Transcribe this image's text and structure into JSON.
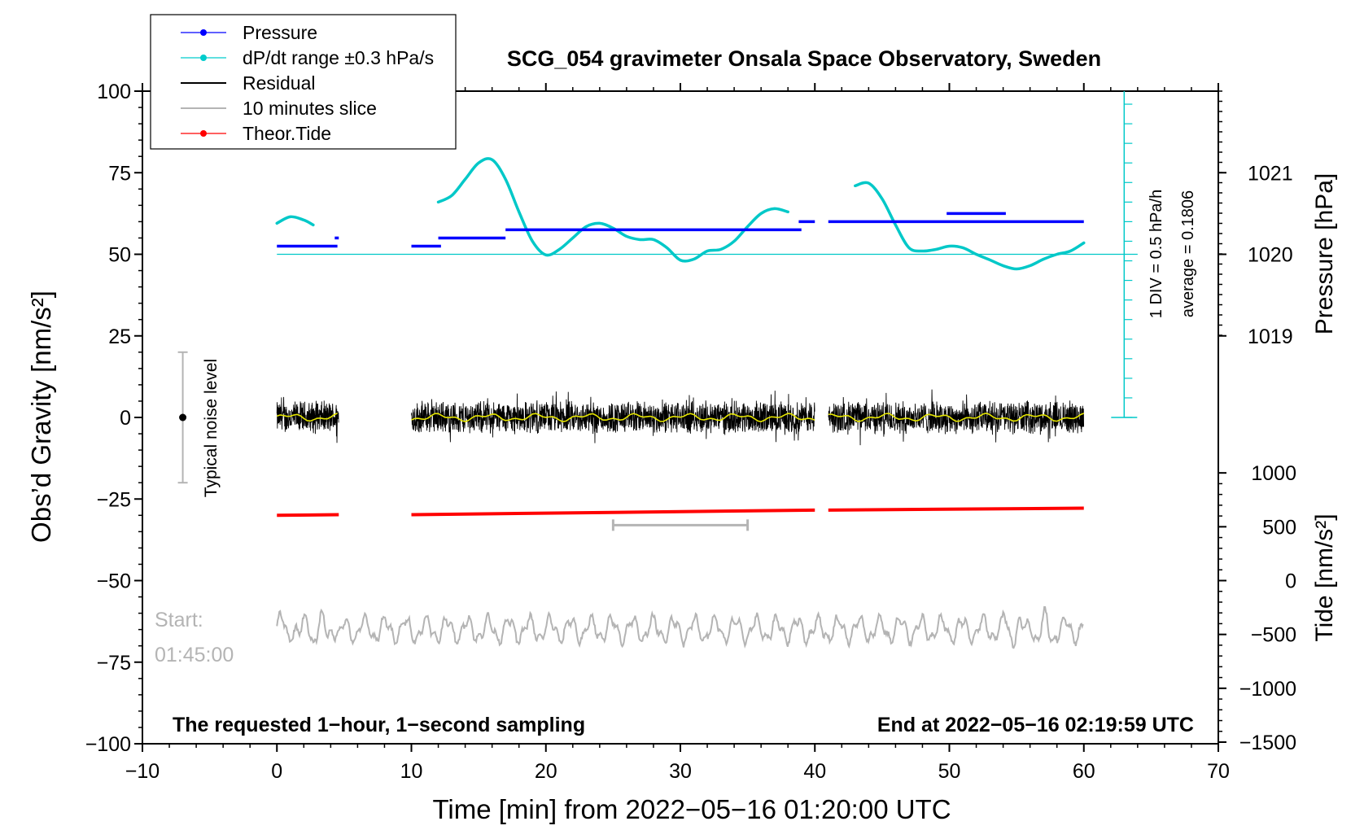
{
  "chart_data": {
    "type": "line",
    "title": "SCG_054 gravimeter Onsala Space Observatory, Sweden",
    "xlabel": "Time [min] from 2022−05−16 01:20:00 UTC",
    "ylabel_left": "Obs’d Gravity [nm/s²]",
    "ylabel_right_pressure": "Pressure [hPa]",
    "ylabel_right_tide": "Tide [nm/s²]",
    "xlim": [
      -10,
      70
    ],
    "ylim": [
      -100,
      100
    ],
    "x_ticks": [
      -10,
      0,
      10,
      20,
      30,
      40,
      50,
      60,
      70
    ],
    "x_tick_labels": [
      "−10",
      "0",
      "10",
      "20",
      "30",
      "40",
      "50",
      "60",
      "70"
    ],
    "y_ticks": [
      -100,
      -75,
      -50,
      -25,
      0,
      25,
      50,
      75,
      100
    ],
    "y_tick_labels": [
      "−100",
      "−75",
      "−50",
      "−25",
      "0",
      "25",
      "50",
      "75",
      "100"
    ],
    "pressure_ticks": [
      1019,
      1020,
      1021
    ],
    "pressure_tick_labels": [
      "1019",
      "1020",
      "1021"
    ],
    "tide_ticks": [
      1000,
      500,
      0,
      -500,
      -1000,
      -1500
    ],
    "tide_tick_labels": [
      "1000",
      "500",
      "0",
      "−500",
      "−1000",
      "−1500"
    ],
    "legend": [
      {
        "label": "Pressure",
        "color": "#0000ff",
        "marker": true
      },
      {
        "label": "dP/dt range ±0.3 hPa/s",
        "color": "#00cccc",
        "marker": true
      },
      {
        "label": "Residual",
        "color": "#000000",
        "marker": false
      },
      {
        "label": "10 minutes slice",
        "color": "#b4b4b4",
        "marker": false
      },
      {
        "label": "Theor.Tide",
        "color": "#ff0000",
        "marker": true
      }
    ],
    "legend_position": "top-left",
    "colors": {
      "pressure": "#0000ff",
      "dpdt": "#00c8c8",
      "residual": "#000000",
      "smooth": "#e6e600",
      "slice": "#b4b4b4",
      "tide": "#ff0000"
    },
    "data_segments": [
      [
        0,
        4.6
      ],
      [
        10,
        40
      ],
      [
        41,
        60
      ]
    ],
    "pressure_series": {
      "name": "Pressure",
      "segments": [
        {
          "x0": 0,
          "x1": 4.5,
          "y": 52.5
        },
        {
          "x0": 4.3,
          "x1": 4.6,
          "y": 55
        },
        {
          "x0": 10,
          "x1": 12.2,
          "y": 52.5
        },
        {
          "x0": 12,
          "x1": 17,
          "y": 55
        },
        {
          "x0": 17,
          "x1": 39,
          "y": 57.5
        },
        {
          "x0": 38.8,
          "x1": 40,
          "y": 60
        },
        {
          "x0": 41,
          "x1": 60,
          "y": 60
        },
        {
          "x0": 49.8,
          "x1": 54.2,
          "y": 62.5
        }
      ]
    },
    "dpdt_series": {
      "name": "dP/dt range ±0.3 hPa/s",
      "baseline": 50,
      "x": [
        0,
        1,
        2,
        2.7,
        12,
        13,
        14,
        15,
        16,
        17,
        18,
        19,
        20,
        21,
        22,
        23,
        24,
        25,
        26,
        27,
        28,
        29,
        30,
        31,
        32,
        33,
        34,
        35,
        36,
        37,
        38,
        43,
        44,
        45,
        46,
        47,
        48,
        49,
        50,
        51,
        52,
        53,
        54,
        55,
        56,
        57,
        58,
        59,
        60
      ],
      "y": [
        59.5,
        61.5,
        60.5,
        59.0,
        66,
        68,
        73,
        78,
        79,
        73,
        63,
        54,
        49.8,
        51.5,
        55,
        58.5,
        59.5,
        58,
        55.5,
        54.5,
        54.5,
        52,
        48.2,
        48.5,
        51,
        51.5,
        54,
        58.5,
        62.5,
        64,
        63,
        71,
        71.8,
        67,
        59,
        52,
        51,
        51.5,
        52.5,
        52,
        50,
        48.3,
        46.5,
        45.5,
        46.5,
        48.5,
        50,
        51,
        53.5
      ]
    },
    "residual_series": {
      "name": "Residual",
      "center": 0,
      "amplitude": 5,
      "sampling": "1-second"
    },
    "slice_series": {
      "name": "10 minutes slice",
      "center": -65,
      "amplitude": 5
    },
    "tide_series": {
      "name": "Theor.Tide",
      "segments": [
        {
          "x0": 0,
          "x1": 4.6,
          "y0": -30,
          "y1": -29.8
        },
        {
          "x0": 10,
          "x1": 40,
          "y0": -29.8,
          "y1": -28.4
        },
        {
          "x0": 41,
          "x1": 60,
          "y0": -28.4,
          "y1": -27.8
        }
      ]
    },
    "slice_bracket": {
      "x0": 25,
      "x1": 35,
      "y": -33
    },
    "noise_bar": {
      "label": "Typical noise level",
      "x": -7,
      "y_center": 0,
      "y_low": -20,
      "y_high": 20
    },
    "scale_bar": {
      "x": 63,
      "y_bottom": 0,
      "y_top": 100,
      "baseline": 50,
      "div_label": "1 DIV = 0.5 hPa/h",
      "average_label": "average = 0.1806"
    },
    "start_label_1": "Start:",
    "start_label_2": "01:45:00",
    "bottom_left_text": "The requested 1−hour, 1−second sampling",
    "bottom_right_text": "End at 2022−05−16 02:19:59 UTC"
  }
}
